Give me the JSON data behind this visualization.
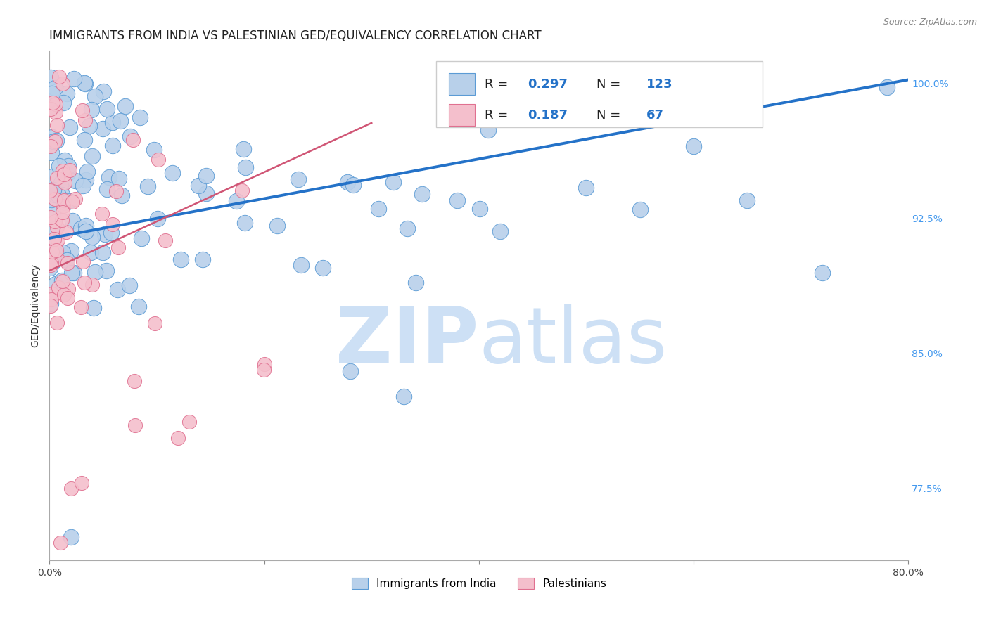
{
  "title": "IMMIGRANTS FROM INDIA VS PALESTINIAN GED/EQUIVALENCY CORRELATION CHART",
  "source": "Source: ZipAtlas.com",
  "ylabel": "GED/Equivalency",
  "ytick_labels": [
    "77.5%",
    "85.0%",
    "92.5%",
    "100.0%"
  ],
  "ytick_values": [
    0.775,
    0.85,
    0.925,
    1.0
  ],
  "xmin": 0.0,
  "xmax": 0.8,
  "ymin": 0.735,
  "ymax": 1.018,
  "legend_blue_r": "0.297",
  "legend_blue_n": "123",
  "legend_pink_r": "0.187",
  "legend_pink_n": "67",
  "blue_color": "#b8d0ea",
  "blue_edge_color": "#5b9bd5",
  "blue_line_color": "#2472c8",
  "pink_color": "#f4bfcc",
  "pink_edge_color": "#e07090",
  "pink_line_color": "#d05575",
  "watermark_zip": "ZIP",
  "watermark_atlas": "atlas",
  "watermark_color": "#cde0f5",
  "title_fontsize": 12,
  "source_fontsize": 9,
  "axis_label_fontsize": 10,
  "tick_fontsize": 10,
  "blue_trendline_x": [
    0.0,
    0.8
  ],
  "blue_trendline_y": [
    0.914,
    1.002
  ],
  "pink_trendline_x": [
    0.0,
    0.3
  ],
  "pink_trendline_y": [
    0.896,
    0.978
  ]
}
